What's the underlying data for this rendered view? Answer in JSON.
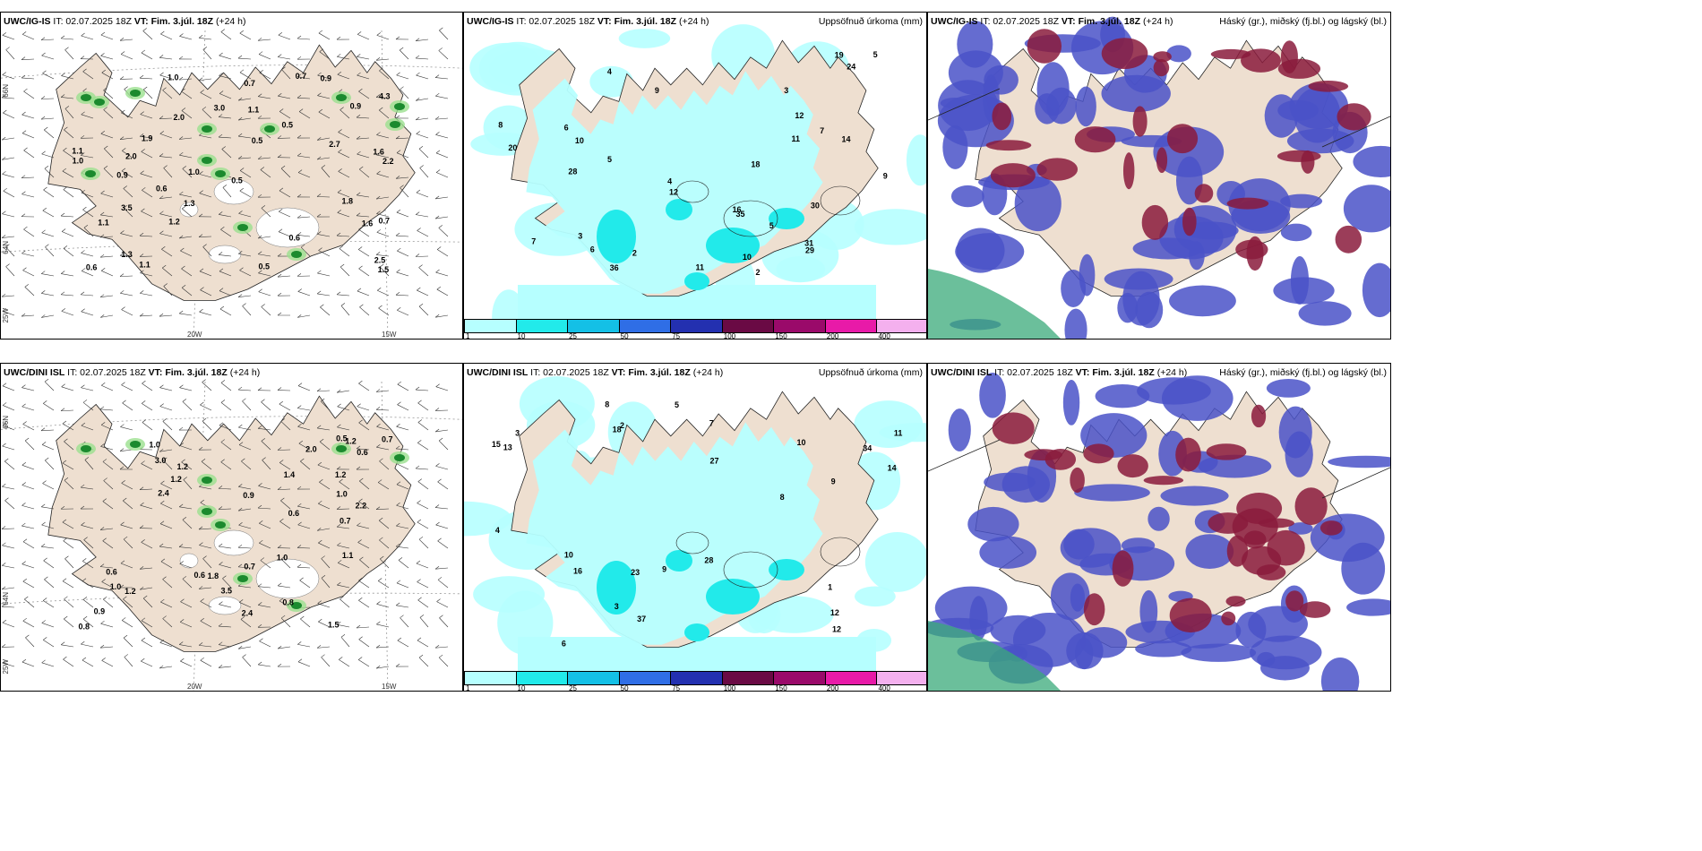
{
  "rows": [
    {
      "model": "UWC/IG-IS",
      "it": "IT: 02.07.2025 18Z",
      "vt_label": "VT:",
      "vt": "Fim. 3.júl. 18Z",
      "lead": "(+24 h)",
      "precip_title": "Uppsöfnuð úrkoma (mm)",
      "cloud_title": "Háský (gr.), miðský (fj.bl.) og lágský (bl.)",
      "wind_values": [
        "2.0",
        "1.6",
        "0.5",
        "2.2",
        "1.0",
        "0.7",
        "1.3",
        "0.7",
        "1.6",
        "0.9",
        "1.9",
        "1.8",
        "2.7",
        "1.2",
        "1.1",
        "0.5",
        "0.6",
        "1.1",
        "1.0",
        "3.0",
        "2.5",
        "1.1",
        "1.3",
        "3.5",
        "0.5",
        "0.9",
        "0.6",
        "0.6",
        "0.5",
        "4.3",
        "1.1",
        "1.5",
        "0.9",
        "0.7",
        "2.0",
        "1.0"
      ],
      "precip_values": [
        "2",
        "4",
        "3",
        "6",
        "7",
        "10",
        "9",
        "5",
        "12",
        "6",
        "7",
        "8",
        "4",
        "16",
        "11",
        "19",
        "20",
        "24",
        "30",
        "14",
        "31",
        "35",
        "36",
        "29",
        "18",
        "12",
        "28",
        "10",
        "11",
        "9",
        "5",
        "5",
        "3",
        "2"
      ]
    },
    {
      "model": "UWC/DINI ISL",
      "it": "IT: 02.07.2025 18Z",
      "vt_label": "VT:",
      "vt": "Fim. 3.júl. 18Z",
      "lead": "(+24 h)",
      "precip_title": "Uppsöfnuð úrkoma (mm)",
      "cloud_title": "Háský (gr.), miðský (fj.bl.) og lágský (bl.)",
      "wind_values": [
        "1.2",
        "3.0",
        "0.7",
        "1.1",
        "1.2",
        "2.4",
        "0.5",
        "1.5",
        "0.8",
        "0.6",
        "0.7",
        "1.4",
        "0.9",
        "0.6",
        "2.2",
        "0.8",
        "0.6",
        "1.0",
        "1.2",
        "2.0",
        "2.4",
        "1.0",
        "0.6",
        "1.0",
        "1.2",
        "3.5",
        "0.9",
        "1.8",
        "0.7",
        "1.0",
        "1.2"
      ],
      "precip_values": [
        "2",
        "1",
        "3",
        "6",
        "5",
        "7",
        "8",
        "10",
        "11",
        "16",
        "37",
        "14",
        "13",
        "18",
        "12",
        "27",
        "23",
        "34",
        "15",
        "12",
        "28",
        "9",
        "3",
        "4",
        "8",
        "9",
        "10"
      ]
    }
  ],
  "legend": {
    "labels": [
      "1",
      "10",
      "25",
      "50",
      "75",
      "100",
      "150",
      "200",
      "400"
    ],
    "colors": [
      "#b6ffff",
      "#22eaea",
      "#14c0e6",
      "#2f6ee6",
      "#2330b0",
      "#6a0a44",
      "#9a0a6a",
      "#e81aa8",
      "#f4b0ee"
    ]
  },
  "axes": {
    "lat_66": "66N",
    "lat_64": "64N",
    "lon_25": "25W",
    "lon_20": "20W",
    "lon_15": "15W"
  },
  "colors": {
    "land": "#eedfd0",
    "sea": "#ffffff",
    "precip_light": "#b6ffff",
    "precip_mid": "#22eaea",
    "wind_green": "#1b8a2e",
    "cloud_low": "#4a52c8",
    "cloud_mid": "#8a1b3c",
    "cloud_high": "#3aaa7a"
  }
}
